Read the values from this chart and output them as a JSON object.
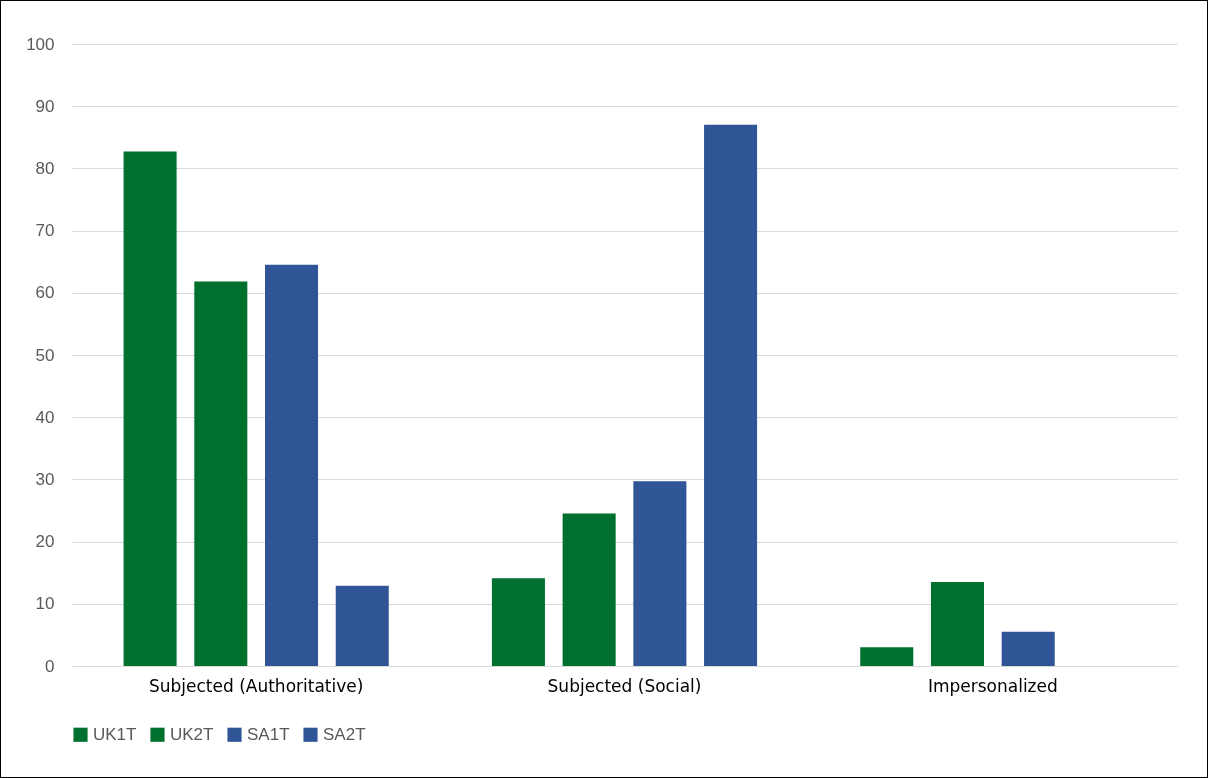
{
  "chart_data": {
    "type": "bar",
    "categories": [
      "Subjected (Authoritative)",
      "Subjected (Social)",
      "Impersonalized"
    ],
    "series": [
      {
        "name": "UK1T",
        "color": "#00702f",
        "values": [
          82.7,
          14.1,
          3.0
        ]
      },
      {
        "name": "UK2T",
        "color": "#00702f",
        "values": [
          61.8,
          24.5,
          13.5
        ]
      },
      {
        "name": "SA1T",
        "color": "#2f5597",
        "values": [
          64.5,
          29.7,
          5.5
        ]
      },
      {
        "name": "SA2T",
        "color": "#2f5597",
        "values": [
          12.9,
          87.0,
          0
        ]
      }
    ],
    "ylim": [
      0,
      100
    ],
    "yticks": [
      0,
      10,
      20,
      30,
      40,
      50,
      60,
      70,
      80,
      90,
      100
    ],
    "grid": "y",
    "legend": "bottom"
  }
}
